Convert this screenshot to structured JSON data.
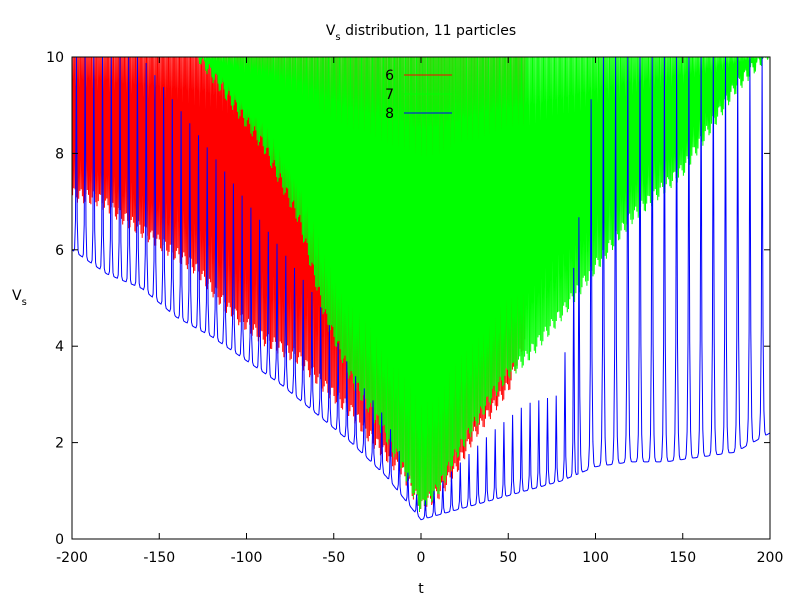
{
  "chart_data": {
    "type": "line",
    "title": "Vs distribution, 11 particles",
    "title_main": "V",
    "title_sub": "s",
    "title_rest": " distribution, 11 particles",
    "xlabel": "t",
    "ylabel": "Vs",
    "ylabel_main": "V",
    "ylabel_sub": "s",
    "xlim": [
      -200,
      200
    ],
    "ylim": [
      0,
      10
    ],
    "xticks": [
      -200,
      -150,
      -100,
      -50,
      0,
      50,
      100,
      150,
      200
    ],
    "yticks": [
      0,
      2,
      4,
      6,
      8,
      10
    ],
    "grid": false,
    "legend_position": "top-center",
    "series": [
      {
        "name": "6",
        "color": "#ff0000",
        "description": "dense oscillation; lower envelope (x, y)",
        "envelope_x": [
          -200,
          -185,
          -170,
          -150,
          -130,
          -110,
          -90,
          -70,
          -55,
          -40,
          -30,
          -20,
          -10,
          0,
          10,
          20,
          30,
          40,
          50,
          60
        ],
        "envelope_y": [
          7.0,
          6.9,
          6.5,
          6.0,
          5.5,
          4.6,
          4.0,
          3.6,
          3.0,
          2.5,
          2.0,
          1.6,
          1.2,
          0.5,
          0.8,
          1.3,
          2.0,
          2.5,
          3.0,
          4.0
        ],
        "upper_y": 10
      },
      {
        "name": "7",
        "color": "#00ff00",
        "description": "dense oscillation; lower envelope (x, y)",
        "envelope_x": [
          -130,
          -110,
          -90,
          -70,
          -55,
          -40,
          -30,
          -20,
          -10,
          0,
          10,
          20,
          30,
          40,
          50,
          60,
          80,
          100,
          120,
          150,
          180,
          200
        ],
        "envelope_y": [
          10.0,
          9.0,
          8.0,
          6.5,
          4.5,
          3.2,
          2.6,
          2.0,
          1.3,
          0.5,
          0.9,
          1.6,
          2.2,
          2.8,
          3.3,
          3.6,
          4.5,
          5.5,
          6.5,
          7.5,
          9.2,
          10.0
        ],
        "upper_y": 10
      },
      {
        "name": "8",
        "color": "#0000ff",
        "description": "oscillation with spiky peaks; baseline and peak envelope (x, y)",
        "base_x": [
          -200,
          -180,
          -160,
          -140,
          -120,
          -100,
          -80,
          -60,
          -40,
          -20,
          0,
          20,
          40,
          60,
          80,
          100,
          120,
          140,
          160,
          180,
          200
        ],
        "base_y": [
          6.0,
          5.5,
          5.2,
          4.6,
          4.2,
          3.7,
          3.2,
          2.6,
          2.0,
          1.3,
          0.4,
          0.6,
          0.8,
          1.0,
          1.2,
          1.5,
          1.6,
          1.6,
          1.7,
          1.8,
          2.2
        ],
        "peak_y": [
          10,
          10,
          10,
          9.0,
          8.0,
          7.0,
          6.0,
          5.0,
          3.5,
          2.5,
          0.7,
          1.5,
          2.2,
          2.8,
          3.0,
          10,
          10,
          10,
          10,
          10,
          10
        ]
      }
    ]
  }
}
